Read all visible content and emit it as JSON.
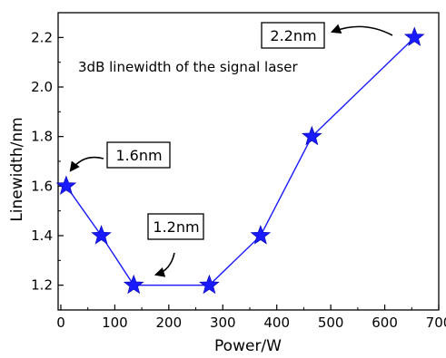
{
  "chart_data": {
    "type": "line",
    "title": "3dB linewidth of the signal laser",
    "xlabel": "Power/W",
    "ylabel": "Linewidth/nm",
    "xlim": [
      -5,
      700
    ],
    "ylim": [
      1.1,
      2.3
    ],
    "xticks": [
      0,
      100,
      200,
      300,
      400,
      500,
      600,
      700
    ],
    "yticks": [
      1.2,
      1.4,
      1.6,
      1.8,
      2.0,
      2.2
    ],
    "xtick_labels": [
      "0",
      "100",
      "200",
      "300",
      "400",
      "500",
      "600",
      "700"
    ],
    "ytick_labels": [
      "1.2",
      "1.4",
      "1.6",
      "1.8",
      "2.0",
      "2.2"
    ],
    "grid": false,
    "series": [
      {
        "color": "#1a1aff",
        "marker": "star",
        "x": [
          10,
          75,
          135,
          275,
          370,
          465,
          655
        ],
        "y": [
          1.6,
          1.4,
          1.2,
          1.2,
          1.4,
          1.8,
          2.2
        ]
      }
    ],
    "annotations": [
      {
        "text": "1.6nm",
        "x": 10,
        "y": 1.6
      },
      {
        "text": "1.2nm",
        "x": 135,
        "y": 1.2
      },
      {
        "text": "2.2nm",
        "x": 655,
        "y": 2.2
      }
    ]
  }
}
